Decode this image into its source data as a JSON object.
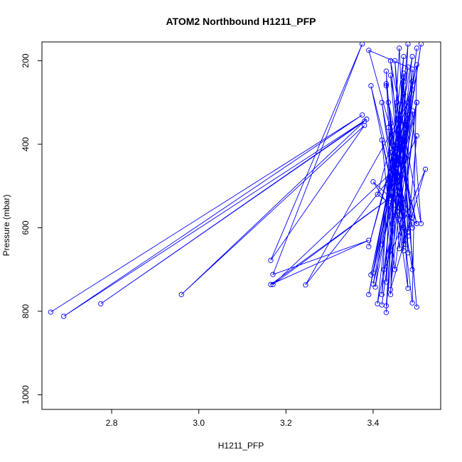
{
  "chart_data": {
    "type": "line",
    "title": "ATOM2 Northbound H1211_PFP",
    "xlabel": "H1211_PFP",
    "ylabel": "Pressure (mbar)",
    "xlim": [
      2.64,
      3.555
    ],
    "ylim": [
      1035,
      155
    ],
    "y_reversed": true,
    "grid": false,
    "xticks": [
      2.8,
      3.0,
      3.2,
      3.4
    ],
    "yticks": [
      200,
      400,
      600,
      800,
      1000
    ],
    "xtick_labels": [
      "2.8",
      "3.0",
      "3.2",
      "3.4"
    ],
    "ytick_labels": [
      "200",
      "400",
      "600",
      "800",
      "1000"
    ],
    "color": "#0000ff",
    "series": [
      {
        "x": [
          2.66,
          3.375,
          2.69,
          3.385,
          2.775,
          3.38,
          2.96,
          3.38,
          3.165,
          3.375,
          3.17,
          3.39,
          3.165,
          3.45,
          3.17,
          3.47,
          3.245,
          3.48,
          3.39,
          3.44,
          3.395,
          3.49,
          3.39,
          3.46,
          3.4,
          3.5,
          3.41,
          3.45,
          3.4,
          3.48,
          3.42,
          3.49,
          3.405,
          3.47,
          3.43,
          3.45,
          3.43,
          3.5,
          3.44,
          3.52,
          3.425,
          3.48,
          3.39,
          3.5,
          3.41,
          3.47,
          3.42,
          3.44,
          3.43,
          3.455,
          3.44,
          3.51,
          3.445,
          3.43,
          3.46,
          3.5,
          3.45,
          3.42,
          3.47,
          3.49,
          3.455,
          3.395,
          3.48,
          3.4,
          3.49,
          3.44,
          3.47,
          3.42,
          3.48,
          3.45,
          3.5,
          3.46,
          3.47,
          3.43,
          3.49,
          3.5,
          3.45,
          3.48,
          3.46,
          3.49,
          3.51,
          3.44,
          3.48,
          3.47,
          3.44,
          3.46,
          3.48,
          3.5,
          3.455,
          3.49,
          3.445,
          3.47,
          3.49,
          3.435,
          3.475,
          3.46,
          3.5,
          3.435,
          3.45,
          3.48,
          3.42,
          3.47,
          3.44,
          3.455,
          3.49,
          3.44,
          3.47,
          3.43
        ],
        "y": [
          802,
          330,
          812,
          340,
          782,
          345,
          760,
          355,
          678,
          160,
          712,
          630,
          736,
          520,
          736,
          440,
          737,
          300,
          760,
          480,
          713,
          250,
          645,
          380,
          735,
          300,
          782,
          410,
          708,
          330,
          785,
          270,
          742,
          190,
          803,
          480,
          787,
          170,
          748,
          460,
          700,
          215,
          175,
          590,
          520,
          280,
          760,
          350,
          730,
          410,
          655,
          160,
          590,
          225,
          650,
          300,
          700,
          390,
          640,
          220,
          560,
          260,
          620,
          490,
          575,
          235,
          600,
          300,
          745,
          200,
          790,
          340,
          655,
          255,
          780,
          210,
          470,
          160,
          580,
          320,
          590,
          200,
          660,
          230,
          530,
          170,
          610,
          380,
          490,
          190,
          440,
          250,
          700,
          360,
          640,
          410,
          590,
          300,
          500,
          340,
          640,
          240,
          760,
          300,
          600,
          420,
          560,
          260
        ]
      }
    ]
  }
}
